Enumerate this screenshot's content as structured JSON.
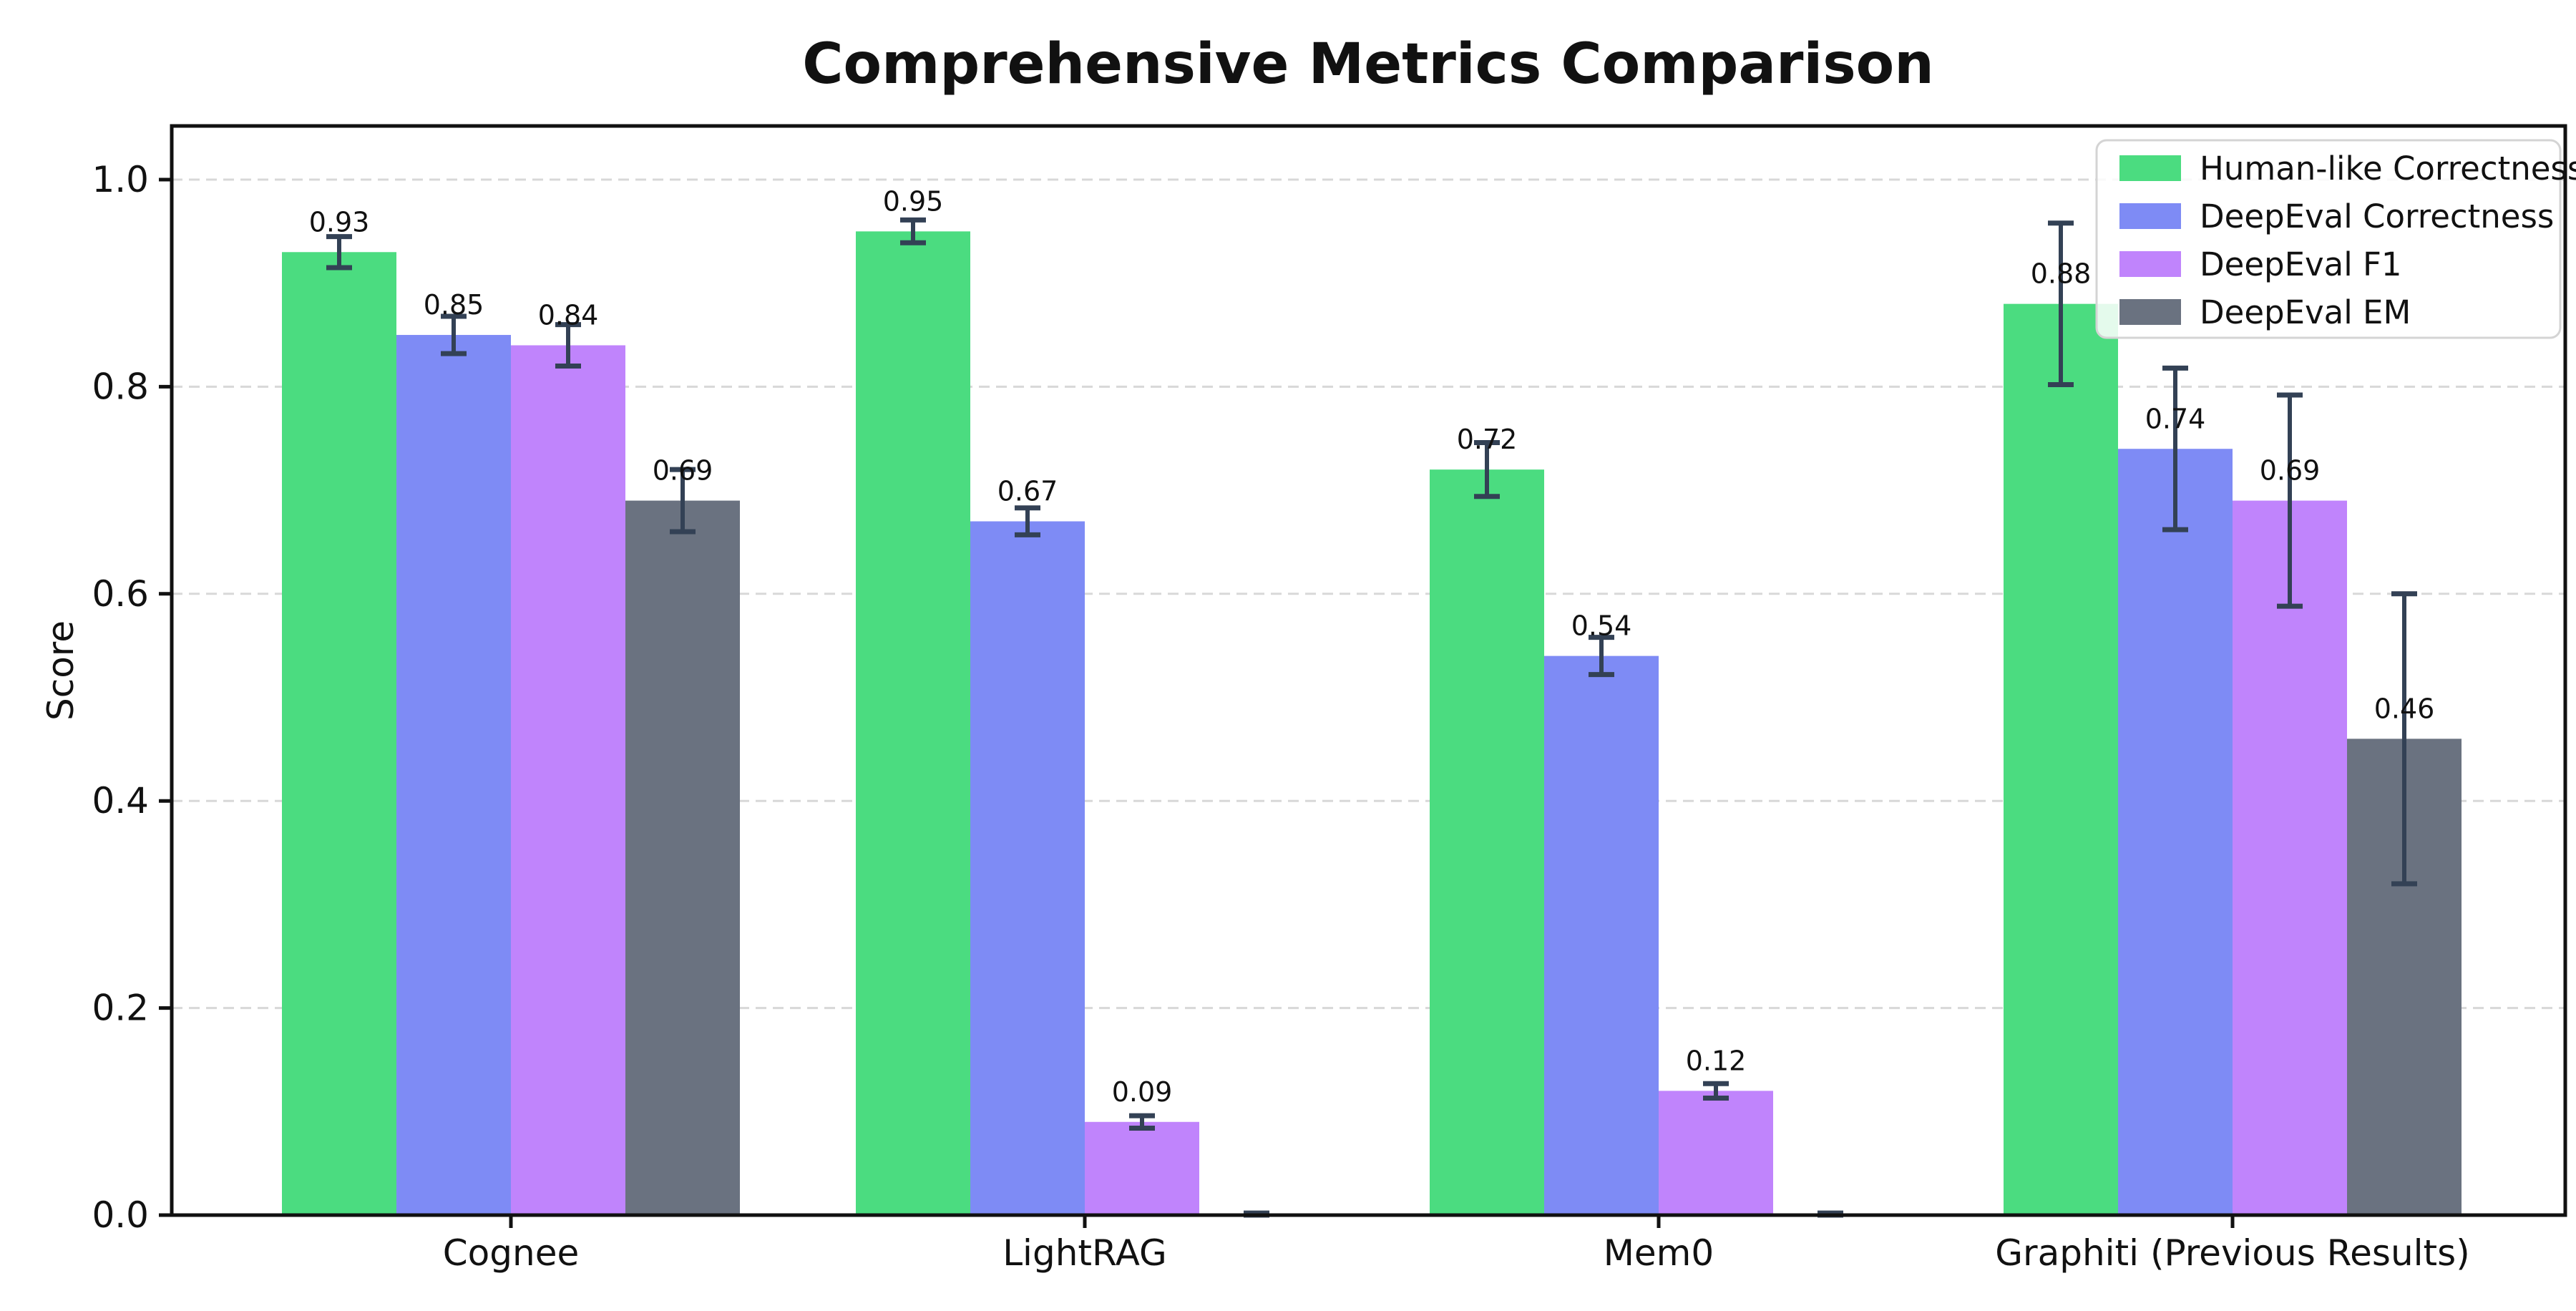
{
  "chart_data": {
    "type": "bar",
    "title": "Comprehensive Metrics Comparison",
    "ylabel": "Score",
    "categories": [
      "Cognee",
      "LightRAG",
      "Mem0",
      "Graphiti (Previous Results)"
    ],
    "series": [
      {
        "name": "Human-like Correctness",
        "color": "#4bdc80",
        "values": [
          0.93,
          0.95,
          0.72,
          0.88
        ],
        "errors": [
          0.015,
          0.011,
          0.026,
          0.078
        ],
        "labels": [
          "0.93",
          "0.95",
          "0.72",
          "0.88"
        ]
      },
      {
        "name": "DeepEval Correctness",
        "color": "#7e8bf5",
        "values": [
          0.85,
          0.67,
          0.54,
          0.74
        ],
        "errors": [
          0.018,
          0.013,
          0.018,
          0.078
        ],
        "labels": [
          "0.85",
          "0.67",
          "0.54",
          "0.74"
        ]
      },
      {
        "name": "DeepEval F1",
        "color": "#c084fc",
        "values": [
          0.84,
          0.09,
          0.12,
          0.69
        ],
        "errors": [
          0.02,
          0.006,
          0.007,
          0.102
        ],
        "labels": [
          "0.84",
          "0.09",
          "0.12",
          "0.69"
        ]
      },
      {
        "name": "DeepEval EM",
        "color": "#6a7280",
        "values": [
          0.69,
          0.0,
          0.0,
          0.46
        ],
        "errors": [
          0.03,
          0.002,
          0.002,
          0.14
        ],
        "labels": [
          "0.69",
          "",
          "",
          "0.46"
        ]
      }
    ],
    "yticks": [
      "0.0",
      "0.2",
      "0.4",
      "0.6",
      "0.8",
      "1.0"
    ],
    "ylim": [
      0,
      1.05
    ],
    "grid": "dashed-horizontal",
    "legend_position": "upper-right",
    "error_bar_color": "#334155",
    "grid_color": "#d8d8d8",
    "spine_color": "#111111"
  }
}
